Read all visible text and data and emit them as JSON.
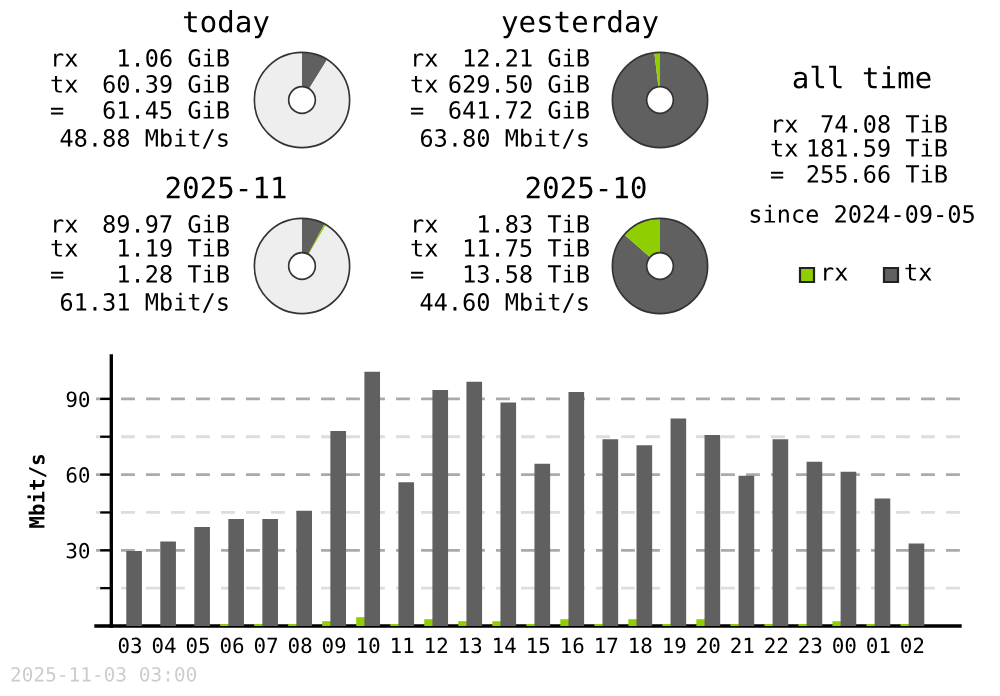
{
  "chart_data": [
    {
      "type": "donut",
      "title": "today",
      "categories": [
        null,
        null,
        null
      ],
      "values": [
        8.85,
        null,
        91.0
      ],
      "colors": [
        "#606060",
        "#8fce00",
        "#eeeeee"
      ],
      "annotations": [
        "rx",
        "1.06 GiB",
        "tx",
        "60.39 GiB",
        "=",
        "61.45 GiB",
        "48.88 Mbit/s"
      ]
    },
    {
      "type": "donut",
      "title": "yesterday",
      "categories": [
        null,
        null
      ],
      "values": [
        98.1,
        1.9
      ],
      "colors": [
        "#606060",
        "#8fce00"
      ],
      "annotations": [
        "rx",
        "12.21 GiB",
        "tx",
        "629.50 GiB",
        "=",
        "641.72 GiB",
        "63.80 Mbit/s"
      ]
    },
    {
      "type": "other",
      "title": "all time",
      "annotations": [
        "rx",
        "74.08 TiB",
        "tx",
        "181.59 TiB",
        "=",
        "255.66 TiB",
        "since 2024-09-05"
      ]
    },
    {
      "type": "donut",
      "title": "2025-11",
      "categories": [
        null,
        null,
        null
      ],
      "values": [
        7.8,
        0.6,
        91.6
      ],
      "colors": [
        "#606060",
        "#8fce00",
        "#eeeeee"
      ],
      "annotations": [
        "rx",
        "89.97 GiB",
        "tx",
        "1.19 TiB",
        "=",
        "1.28 TiB",
        "61.31 Mbit/s"
      ]
    },
    {
      "type": "donut",
      "title": "2025-10",
      "categories": [
        null,
        null
      ],
      "values": [
        86.5,
        13.5
      ],
      "colors": [
        "#606060",
        "#8fce00"
      ],
      "annotations": [
        "rx",
        "1.83 TiB",
        "tx",
        "11.75 TiB",
        "=",
        "13.58 TiB",
        "44.60 Mbit/s"
      ]
    },
    {
      "type": "bar",
      "ylabel": "Mbit/s",
      "legend": "top right",
      "grid": "y",
      "categories": [
        "03",
        "04",
        "05",
        "06",
        "07",
        "08",
        "09",
        "10",
        "11",
        "12",
        "13",
        "14",
        "15",
        "16",
        "17",
        "18",
        "19",
        "20",
        "21",
        "22",
        "23",
        "00",
        "01",
        "02"
      ],
      "series": [
        {
          "name": "rx",
          "color": "#8fce00",
          "values": [
            0,
            0,
            0,
            0.8,
            0.8,
            0.8,
            1.9,
            3.5,
            0.8,
            2.7,
            1.9,
            1.9,
            0.8,
            2.7,
            0.8,
            2.7,
            0.8,
            2.7,
            0.8,
            0.8,
            0.8,
            1.9,
            0.8,
            0.8
          ]
        },
        {
          "name": "tx",
          "color": "#606060",
          "values": [
            29.7,
            33.5,
            39.2,
            42.4,
            42.4,
            45.7,
            77.3,
            100.8,
            57.0,
            93.5,
            96.8,
            88.6,
            64.3,
            92.7,
            74.0,
            71.6,
            82.2,
            75.7,
            59.5,
            74.0,
            65.1,
            61.1,
            50.5,
            32.7
          ]
        }
      ],
      "ylim": [
        0,
        107
      ],
      "yticks": [
        {
          "value": 0,
          "label": null
        },
        {
          "value": 15,
          "label": null
        },
        30,
        {
          "value": 45,
          "label": null
        },
        60,
        {
          "value": 75,
          "label": null
        },
        90
      ],
      "annotations": [
        "2025-11-03 03:00"
      ]
    }
  ]
}
